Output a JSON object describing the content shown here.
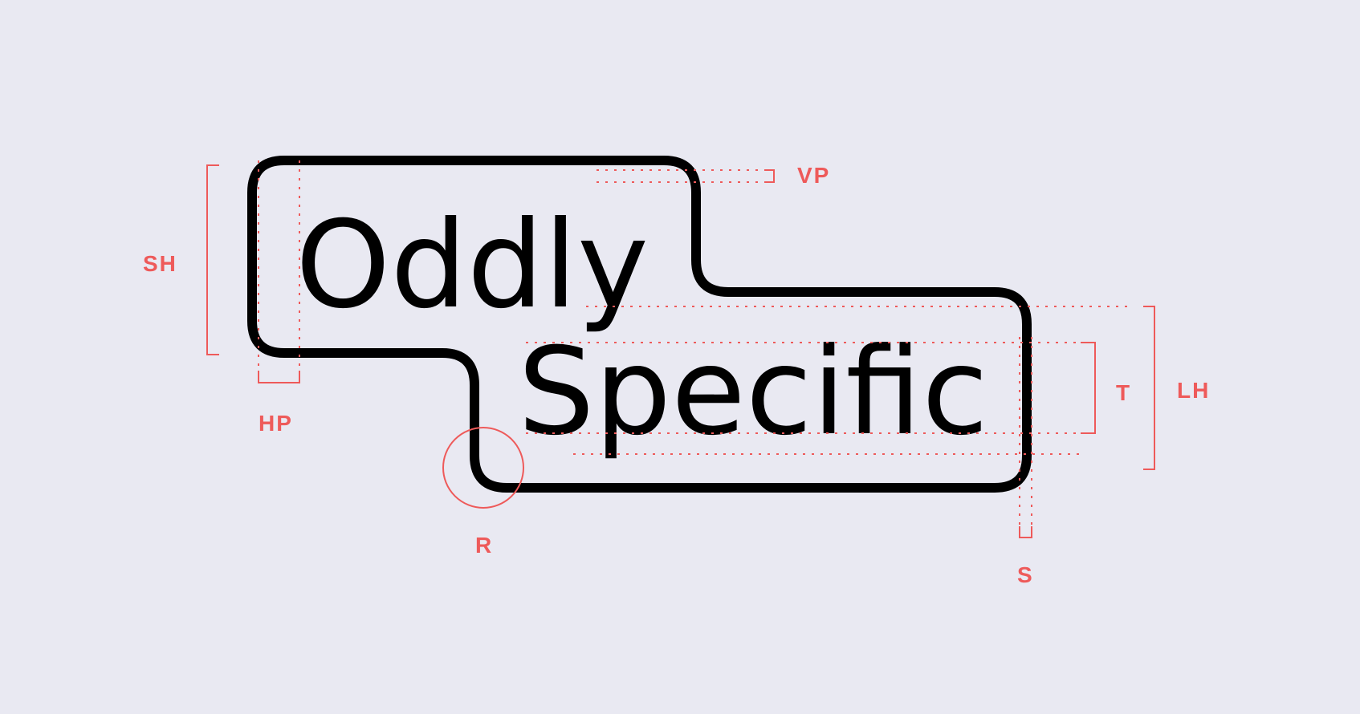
{
  "colors": {
    "background": "#e9e9f2",
    "logo": "#000000",
    "annotation": "#ee5a5a"
  },
  "logo": {
    "line1": "Oddly",
    "line2": "Specific"
  },
  "labels": {
    "vp": "VP",
    "sh": "SH",
    "hp": "HP",
    "r": "R",
    "t": "T",
    "lh": "LH",
    "s": "S"
  }
}
